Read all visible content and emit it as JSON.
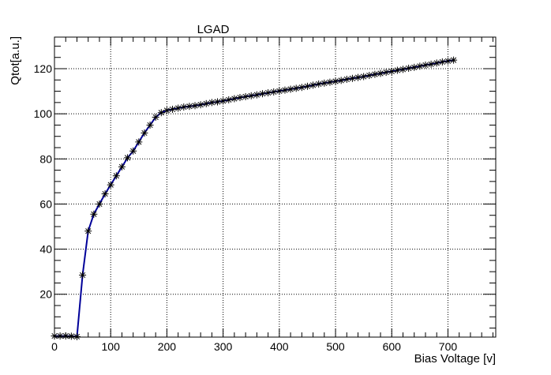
{
  "chart_data": {
    "type": "line",
    "title": "LGAD",
    "xlabel": "Bias Voltage [v]",
    "ylabel": "Qtot[a.u.]",
    "xlim": [
      0,
      785
    ],
    "ylim": [
      1,
      134
    ],
    "x_ticks": [
      0,
      100,
      200,
      300,
      400,
      500,
      600,
      700
    ],
    "y_ticks": [
      20,
      40,
      60,
      80,
      100,
      120
    ],
    "grid": true,
    "colors": {
      "line": "#000099",
      "marker": "#000000",
      "grid": "#000000",
      "frame": "#000000"
    },
    "series": [
      {
        "marker": "star",
        "x": [
          0,
          10,
          20,
          30,
          40,
          50,
          60,
          70,
          80,
          90,
          100,
          110,
          120,
          130,
          140,
          150,
          160,
          170,
          180,
          190,
          200,
          210,
          220,
          230,
          240,
          250,
          260,
          270,
          280,
          290,
          300,
          310,
          320,
          330,
          340,
          350,
          360,
          370,
          380,
          390,
          400,
          410,
          420,
          430,
          440,
          450,
          460,
          470,
          480,
          490,
          500,
          510,
          520,
          530,
          540,
          550,
          560,
          570,
          580,
          590,
          600,
          610,
          620,
          630,
          640,
          650,
          660,
          670,
          680,
          690,
          700,
          710
        ],
        "y": [
          1.5,
          1.5,
          1.5,
          1.4,
          1.2,
          28.5,
          48,
          55.5,
          60,
          64.5,
          68.5,
          72.5,
          76.5,
          80.5,
          83.5,
          87.5,
          91.5,
          95,
          98.5,
          100.5,
          101.5,
          102,
          102.5,
          103,
          103.3,
          103.6,
          104,
          104.5,
          105,
          105.3,
          105.7,
          106.2,
          106.7,
          107.2,
          107.6,
          108,
          108.4,
          108.9,
          109.3,
          109.7,
          110.1,
          110.5,
          110.9,
          111.3,
          111.7,
          112.2,
          112.7,
          113.2,
          113.6,
          114,
          114.4,
          114.8,
          115.3,
          115.7,
          116.1,
          116.5,
          117,
          117.5,
          117.9,
          118.4,
          118.8,
          119.3,
          119.7,
          120.2,
          120.6,
          121.1,
          121.6,
          122,
          122.5,
          123,
          123.4,
          123.8
        ]
      }
    ]
  }
}
